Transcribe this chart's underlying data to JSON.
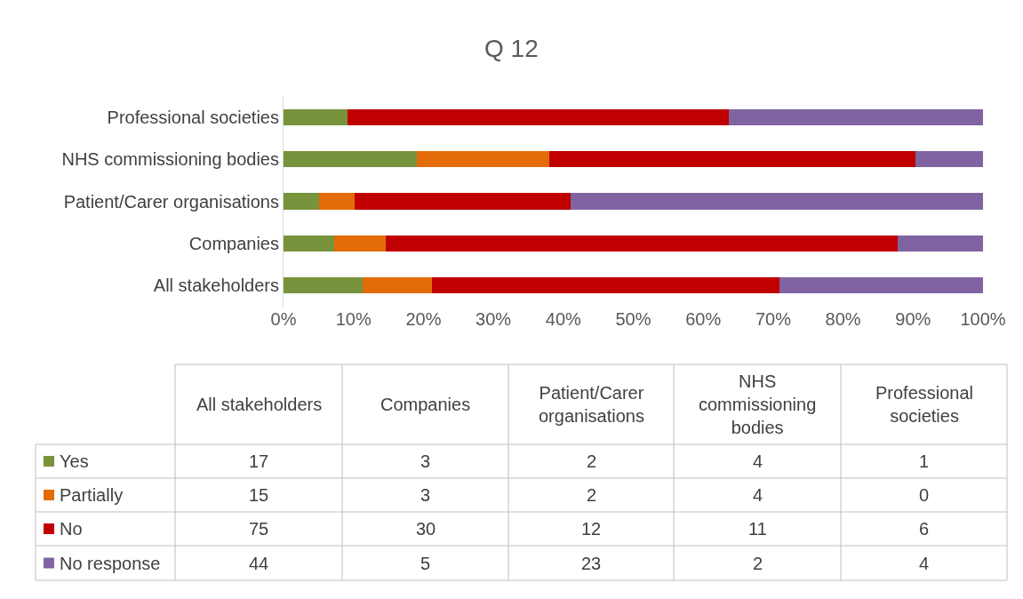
{
  "chart_data": [
    {
      "type": "bar",
      "orientation": "horizontal",
      "stacked": true,
      "title": "Q 12",
      "categories": [
        "Professional societies",
        "NHS commissioning bodies",
        "Patient/Carer organisations",
        "Companies",
        "All stakeholders"
      ],
      "series": [
        {
          "name": "Yes",
          "color": "#77933c",
          "values": [
            9.1,
            19.0,
            5.1,
            7.3,
            11.3
          ]
        },
        {
          "name": "Partially",
          "color": "#e36c09",
          "values": [
            0,
            19.0,
            5.1,
            7.3,
            9.9
          ]
        },
        {
          "name": "No",
          "color": "#c00000",
          "values": [
            54.5,
            52.4,
            30.8,
            73.2,
            49.7
          ]
        },
        {
          "name": "No response",
          "color": "#8064a2",
          "values": [
            36.4,
            9.6,
            59.0,
            12.2,
            29.1
          ]
        }
      ],
      "xlim": [
        0,
        100
      ],
      "xticks": [
        {
          "value": 0,
          "label": "0%"
        },
        {
          "value": 10,
          "label": "10%"
        },
        {
          "value": 20,
          "label": "20%"
        },
        {
          "value": 30,
          "label": "30%"
        },
        {
          "value": 40,
          "label": "40%"
        },
        {
          "value": 50,
          "label": "50%"
        },
        {
          "value": 60,
          "label": "60%"
        },
        {
          "value": 70,
          "label": "70%"
        },
        {
          "value": 80,
          "label": "80%"
        },
        {
          "value": 90,
          "label": "90%"
        },
        {
          "value": 100,
          "label": "100%"
        }
      ],
      "legend": "bottom"
    },
    {
      "type": "other",
      "categories": [
        "All stakeholders",
        "Companies",
        "Patient/Carer organisations",
        "NHS commissioning bodies",
        "Professional societies"
      ],
      "series": [
        {
          "values": [
            17,
            3,
            2,
            4,
            1
          ]
        },
        {
          "values": [
            15,
            3,
            2,
            4,
            0
          ]
        },
        {
          "values": [
            75,
            30,
            12,
            11,
            6
          ]
        },
        {
          "values": [
            44,
            5,
            23,
            2,
            4
          ]
        }
      ],
      "data_labels": true
    }
  ]
}
